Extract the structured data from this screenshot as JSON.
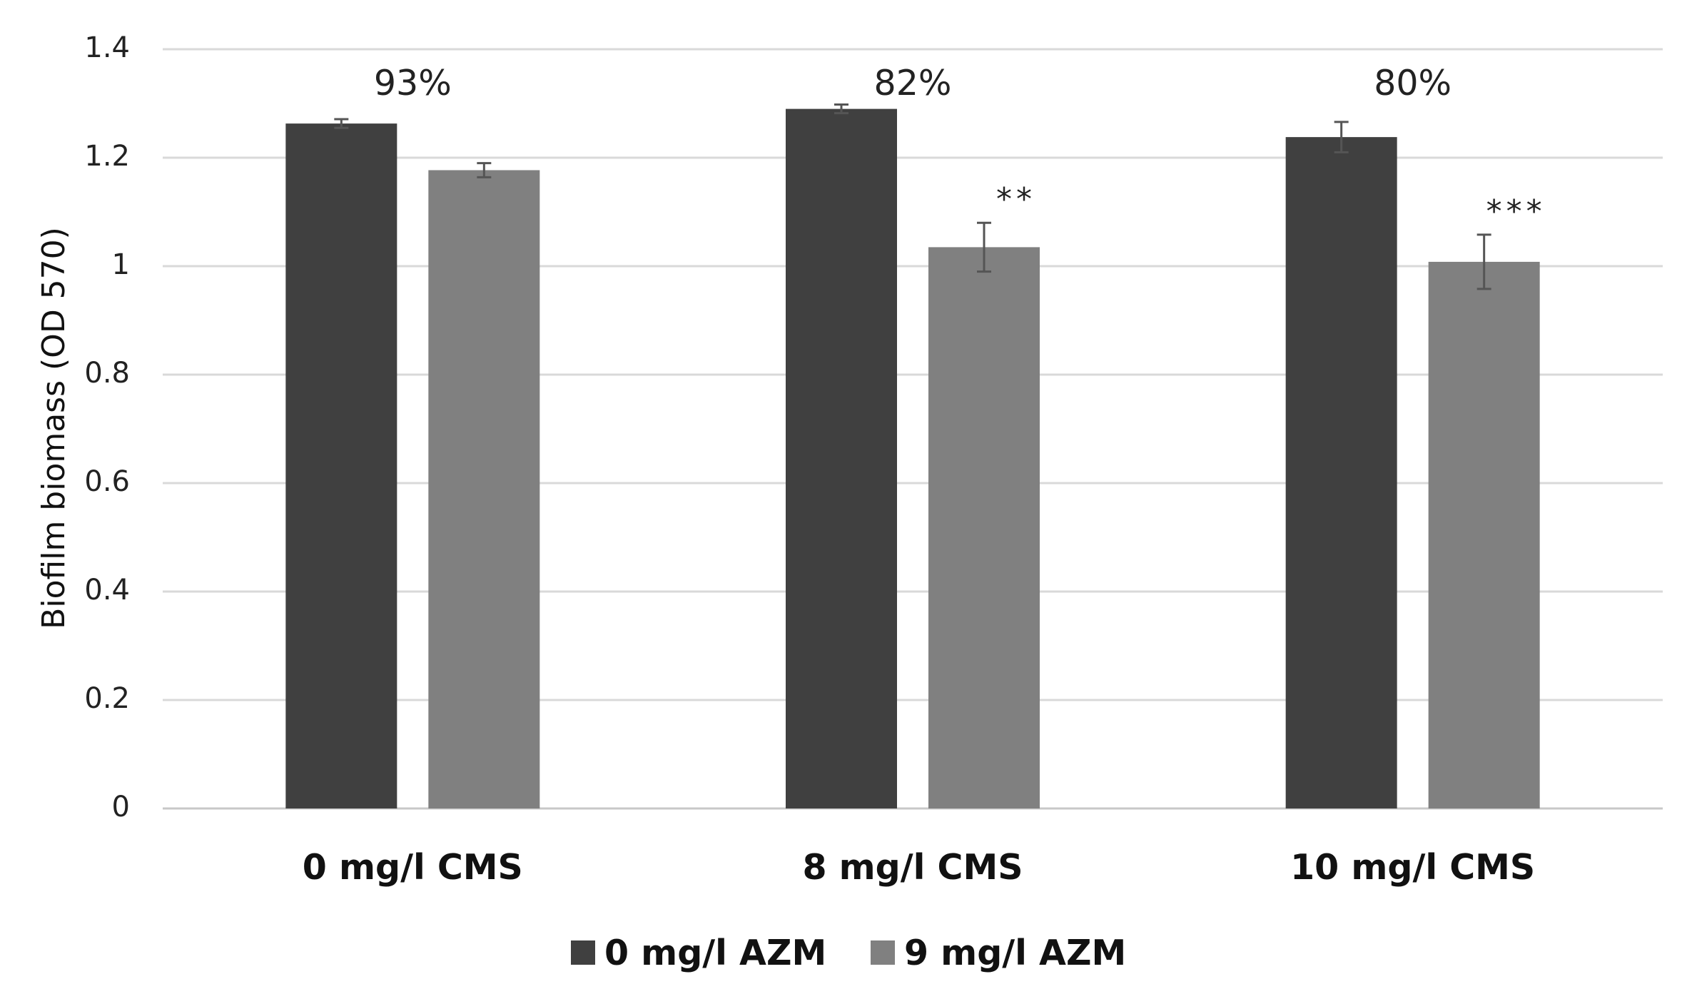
{
  "chart_data": {
    "type": "bar",
    "title": "",
    "xlabel": "",
    "ylabel": "Biofilm biomass (OD 570)",
    "ylim": [
      0,
      1.4
    ],
    "yticks": [
      0,
      0.2,
      0.4,
      0.6,
      0.8,
      1.0,
      1.2,
      1.4
    ],
    "ytick_labels": [
      "0",
      "0.2",
      "0.4",
      "0.6",
      "0.8",
      "1",
      "1.2",
      "1.4"
    ],
    "grid": true,
    "legend_position": "bottom",
    "categories": [
      "0 mg/l CMS",
      "8 mg/l CMS",
      "10 mg/l CMS"
    ],
    "series": [
      {
        "name": "0 mg/l AZM",
        "color": "#404040",
        "values": [
          1.263,
          1.29,
          1.238
        ],
        "errors": [
          0.008,
          0.008,
          0.028
        ]
      },
      {
        "name": "9 mg/l AZM",
        "color": "#808080",
        "values": [
          1.177,
          1.035,
          1.008
        ],
        "errors": [
          0.013,
          0.045,
          0.05
        ]
      }
    ],
    "group_annotations": [
      "93%",
      "82%",
      "80%"
    ],
    "significance": [
      "",
      "**",
      "***"
    ]
  }
}
